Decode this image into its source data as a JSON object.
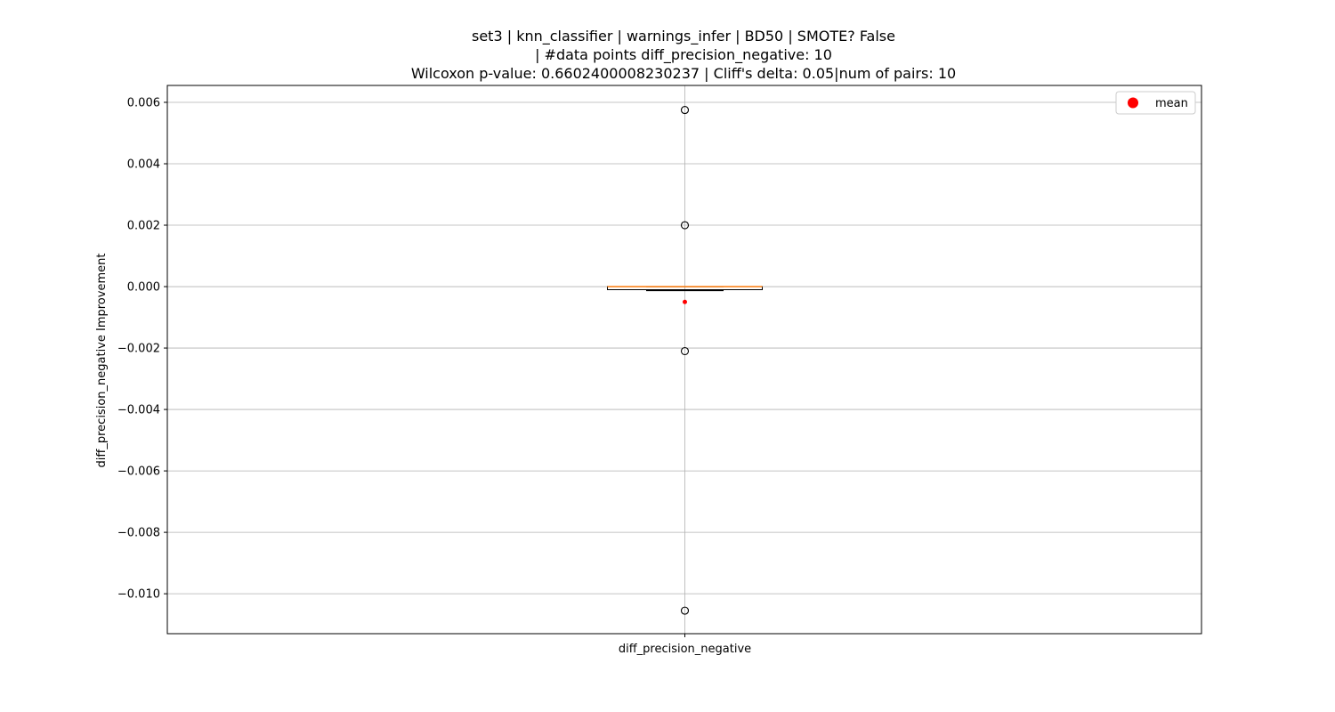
{
  "chart_data": {
    "type": "box",
    "title_lines": [
      "set3 | knn_classifier | warnings_infer | BD50 | SMOTE? False",
      "| #data points diff_precision_negative: 10",
      "Wilcoxon p-value: 0.6602400008230237 | Cliff's delta: 0.05|num of pairs: 10"
    ],
    "xlabel": "",
    "ylabel": "diff_precision_negative Improvement",
    "ylim": [
      -0.0113,
      0.00655
    ],
    "y_ticks": [
      0.006,
      0.004,
      0.002,
      0.0,
      -0.002,
      -0.004,
      -0.006,
      -0.008,
      -0.01
    ],
    "y_tick_labels": [
      "0.006",
      "0.004",
      "0.002",
      "0.000",
      "−0.002",
      "−0.004",
      "−0.006",
      "−0.008",
      "−0.010"
    ],
    "categories": [
      "diff_precision_negative"
    ],
    "box": {
      "q1": -0.0001,
      "median": 0.0,
      "q3": 0.0,
      "whisker_low": -0.00013,
      "whisker_high": 0.0,
      "mean": -0.0005,
      "outliers": [
        0.00575,
        0.002,
        -0.0021,
        -0.01055
      ]
    },
    "grid": true,
    "legend": {
      "position": "top-right",
      "entries": [
        "mean"
      ]
    },
    "colors": {
      "median": "#ff7f0e",
      "mean": "#ff0000",
      "grid": "#b0b0b0",
      "axes": "#000000"
    }
  }
}
